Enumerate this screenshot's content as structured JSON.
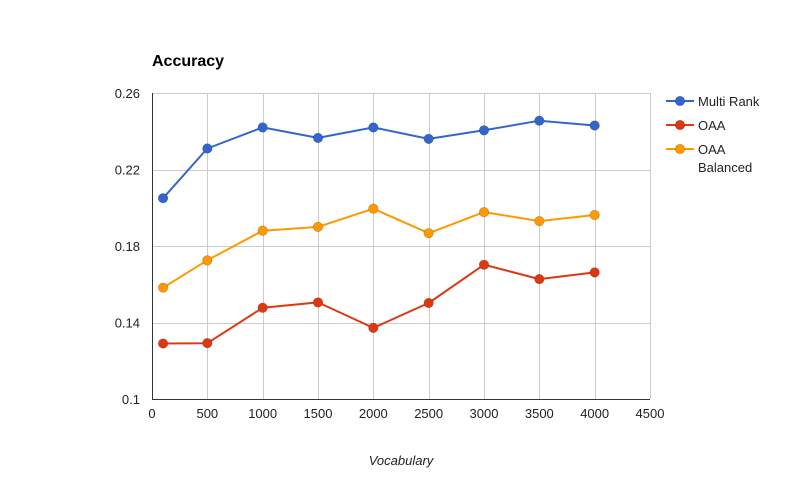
{
  "chart_data": {
    "type": "line",
    "title": "Accuracy",
    "xlabel": "Vocabulary",
    "ylabel": "",
    "xlim": [
      0,
      4500
    ],
    "ylim": [
      0.1,
      0.26
    ],
    "x_ticks": [
      0,
      500,
      1000,
      1500,
      2000,
      2500,
      3000,
      3500,
      4000,
      4500
    ],
    "y_ticks": [
      0.1,
      0.14,
      0.18,
      0.22,
      0.26
    ],
    "y_tick_labels": [
      "0.1",
      "0.14",
      "0.18",
      "0.22",
      "0.26"
    ],
    "grid": true,
    "legend_position": "right",
    "x": [
      100,
      500,
      1000,
      1500,
      2000,
      2500,
      3000,
      3500,
      4000
    ],
    "series": [
      {
        "name": "Multi Rank",
        "color": "#3366cc",
        "values": [
          0.205,
          0.231,
          0.242,
          0.2365,
          0.242,
          0.236,
          0.2405,
          0.2455,
          0.243
        ]
      },
      {
        "name": "OAA",
        "color": "#dc3912",
        "values": [
          0.129,
          0.1292,
          0.1477,
          0.1505,
          0.1372,
          0.1502,
          0.1702,
          0.1627,
          0.1662
        ]
      },
      {
        "name": "OAA Balanced",
        "name_lines": [
          "OAA",
          "Balanced"
        ],
        "color": "#ff9900",
        "values": [
          0.1582,
          0.1725,
          0.188,
          0.19,
          0.1995,
          0.1867,
          0.1977,
          0.193,
          0.1962
        ]
      }
    ]
  }
}
